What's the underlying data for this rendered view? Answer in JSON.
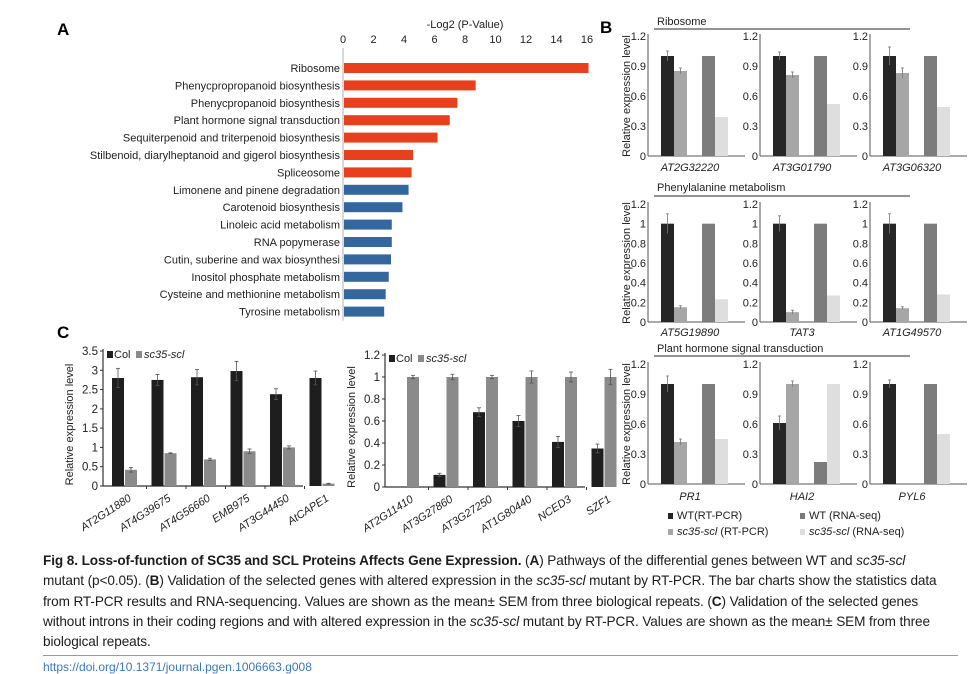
{
  "figure": {
    "panel_labels": {
      "a": "A",
      "b": "B",
      "c": "C"
    }
  },
  "colors": {
    "enriched_red": "#e8401c",
    "enriched_blue": "#34679e",
    "wt_rtpcr": "#262626",
    "mut_rtpcr": "#a6a6a6",
    "wt_rnaseq": "#7c7c7c",
    "mut_rnaseq": "#dedede",
    "col": "#1e1e1e",
    "sc35": "#8a8a8a"
  },
  "chart_data": [
    {
      "id": "A",
      "type": "bar",
      "orientation": "horizontal",
      "title": "",
      "xlabel": "-Log2 (P-Value)",
      "ylabel": "",
      "xlim": [
        0,
        16
      ],
      "xticks": [
        0,
        2,
        4,
        6,
        8,
        10,
        12,
        14,
        16
      ],
      "axis_position": "top",
      "categories": [
        "Ribosome",
        "Phenycpropropanoid biosynthesis",
        "Phenycpropanoid biosynthesis",
        "Plant hormone signal transduction",
        "Sequiterpenoid and triterpenoid biosynthesis",
        "Stilbenoid, diarylheptanoid and gigerol biosynthesis",
        "Spliceosome",
        "Limonene and pinene degradation",
        "Carotenoid biosynthesis",
        "Linoleic acid metabolism",
        "RNA popymerase",
        "Cutin, suberine and wax biosynthesi",
        "Inositol phosphate metabolism",
        "Cysteine and methionine metabolism",
        "Tyrosine metabolism"
      ],
      "values": [
        16.1,
        8.7,
        7.5,
        7.0,
        6.2,
        4.6,
        4.5,
        4.3,
        3.9,
        3.2,
        3.2,
        3.15,
        3.0,
        2.8,
        2.7
      ],
      "bar_colors": [
        "red",
        "red",
        "red",
        "red",
        "red",
        "red",
        "red",
        "blue",
        "blue",
        "blue",
        "blue",
        "blue",
        "blue",
        "blue",
        "blue"
      ]
    },
    {
      "id": "B",
      "type": "bar",
      "ylabel": "Relative expression level",
      "legend": [
        {
          "key": "wt_rtpcr",
          "label": "WT(RT-PCR)",
          "italic_part": ""
        },
        {
          "key": "mut_rtpcr",
          "label": " (RT-PCR)",
          "italic_part": "sc35-scl"
        },
        {
          "key": "wt_rnaseq",
          "label": "WT (RNA-seq)",
          "italic_part": ""
        },
        {
          "key": "mut_rnaseq",
          "label": " (RNA-seq)",
          "italic_part": "sc35-scl"
        }
      ],
      "legend_placement": "bottom",
      "groups": [
        {
          "title": "Ribosome",
          "ylim": [
            0,
            1.2
          ],
          "yticks": [
            "0",
            "0.3",
            "0.6",
            "0.9",
            "1.2"
          ],
          "yvals": [
            0,
            0.3,
            0.6,
            0.9,
            1.2
          ],
          "genes": [
            {
              "name": "AT2G32220",
              "wt_rtpcr": 1.0,
              "wt_err": 0.05,
              "mut_rtpcr": 0.85,
              "mut_err": 0.03,
              "wt_rnaseq": 1.0,
              "mut_rnaseq": 0.39
            },
            {
              "name": "AT3G01790",
              "wt_rtpcr": 1.0,
              "wt_err": 0.04,
              "mut_rtpcr": 0.81,
              "mut_err": 0.03,
              "wt_rnaseq": 1.0,
              "mut_rnaseq": 0.52
            },
            {
              "name": "AT3G06320",
              "wt_rtpcr": 1.0,
              "wt_err": 0.09,
              "mut_rtpcr": 0.83,
              "mut_err": 0.05,
              "wt_rnaseq": 1.0,
              "mut_rnaseq": 0.49
            }
          ]
        },
        {
          "title": "Phenylalanine metabolism",
          "ylim": [
            0,
            1.2
          ],
          "yticks": [
            "0",
            "0.2",
            "0.4",
            "0.6",
            "0.8",
            "1",
            "1.2"
          ],
          "yvals": [
            0,
            0.2,
            0.4,
            0.6,
            0.8,
            1.0,
            1.2
          ],
          "genes": [
            {
              "name": "AT5G19890",
              "wt_rtpcr": 1.0,
              "wt_err": 0.1,
              "mut_rtpcr": 0.15,
              "mut_err": 0.015,
              "wt_rnaseq": 1.0,
              "mut_rnaseq": 0.23
            },
            {
              "name": "TAT3",
              "wt_rtpcr": 1.0,
              "wt_err": 0.08,
              "mut_rtpcr": 0.1,
              "mut_err": 0.02,
              "wt_rnaseq": 1.0,
              "mut_rnaseq": 0.27
            },
            {
              "name": "AT1G49570",
              "wt_rtpcr": 1.0,
              "wt_err": 0.1,
              "mut_rtpcr": 0.14,
              "mut_err": 0.015,
              "wt_rnaseq": 1.0,
              "mut_rnaseq": 0.28
            }
          ]
        },
        {
          "title": "Plant hormone signal transduction",
          "ylim": [
            0,
            1.2
          ],
          "yticks": [
            "0",
            "0.3",
            "0.6",
            "0.9",
            "1.2"
          ],
          "yvals": [
            0,
            0.3,
            0.6,
            0.9,
            1.2
          ],
          "genes": [
            {
              "name": "PR1",
              "wt_rtpcr": 1.0,
              "wt_err": 0.08,
              "mut_rtpcr": 0.42,
              "mut_err": 0.03,
              "wt_rnaseq": 1.0,
              "mut_rnaseq": 0.45
            },
            {
              "name": "HAI2",
              "wt_rtpcr": 0.61,
              "wt_err": 0.07,
              "mut_rtpcr": 1.0,
              "mut_err": 0.03,
              "wt_rnaseq": 0.22,
              "mut_rnaseq": 1.0
            },
            {
              "name": "PYL6",
              "wt_rtpcr": 1.0,
              "wt_err": 0.04,
              "mut_rtpcr": 0.0,
              "mut_err": 0.0,
              "wt_rnaseq": 1.0,
              "mut_rnaseq": 0.5
            }
          ]
        }
      ]
    },
    {
      "id": "C-left",
      "type": "bar",
      "ylabel": "Relative expression level",
      "ylim": [
        0,
        3.5
      ],
      "yticks": [
        "0",
        "0.5",
        "1",
        "1.5",
        "2",
        "2.5",
        "3",
        "3.5"
      ],
      "yvals": [
        0,
        0.5,
        1,
        1.5,
        2,
        2.5,
        3,
        3.5
      ],
      "legend": [
        {
          "key": "col",
          "label": "Col"
        },
        {
          "key": "sc35",
          "label": "sc35-scl",
          "italic": true
        }
      ],
      "legend_placement": "top-left",
      "categories": [
        "AT2G11880",
        "AT4G39675",
        "AT4G56660",
        "EMB975",
        "AT3G44450",
        "AtCAPE1"
      ],
      "series": [
        {
          "name": "Col",
          "values": [
            2.8,
            2.75,
            2.82,
            2.98,
            2.38,
            2.8
          ],
          "errors": [
            0.25,
            0.14,
            0.2,
            0.25,
            0.14,
            0.18
          ]
        },
        {
          "name": "sc35-scl",
          "values": [
            0.42,
            0.85,
            0.69,
            0.9,
            1.0,
            0.06
          ],
          "errors": [
            0.06,
            0.01,
            0.03,
            0.06,
            0.04,
            0.01
          ]
        }
      ]
    },
    {
      "id": "C-right",
      "type": "bar",
      "ylabel": "Relative expression level",
      "ylim": [
        0,
        1.2
      ],
      "yticks": [
        "0",
        "0.2",
        "0.4",
        "0.6",
        "0.8",
        "1",
        "1.2"
      ],
      "yvals": [
        0,
        0.2,
        0.4,
        0.6,
        0.8,
        1.0,
        1.2
      ],
      "legend": [
        {
          "key": "col",
          "label": "Col"
        },
        {
          "key": "sc35",
          "label": "sc35-scl",
          "italic": true
        }
      ],
      "legend_placement": "top-left",
      "categories": [
        "AT2G11410",
        "AT3G27860",
        "AT3G27250",
        "AT1G80440",
        "NCED3",
        "SZF1"
      ],
      "series": [
        {
          "name": "Col",
          "values": [
            0.0,
            0.11,
            0.68,
            0.6,
            0.41,
            0.35
          ],
          "errors": [
            0.0,
            0.015,
            0.04,
            0.05,
            0.05,
            0.04
          ]
        },
        {
          "name": "sc35-scl",
          "values": [
            1.0,
            1.0,
            1.0,
            1.0,
            1.0,
            1.0
          ],
          "errors": [
            0.015,
            0.025,
            0.015,
            0.055,
            0.045,
            0.07
          ]
        }
      ]
    }
  ],
  "caption": {
    "fig_label": "Fig 8. Loss-of-function of SC35 and SCL Proteins Affects Gene Expression.",
    "p1": " (",
    "A": "A",
    "a_text": ") Pathways of the differential genes between WT and ",
    "mutant_italic": "sc35-scl",
    "a_text2": " mutant (p<0.05). (",
    "B": "B",
    "b_text": ") Validation of the selected genes with altered expression in the ",
    "b_text2": " mutant by RT-PCR. The bar charts show the statistics data from RT-PCR results and RNA-sequencing. Values are shown as the mean± SEM from three biological repeats. (",
    "C": "C",
    "c_text": ") Validation of the selected genes without introns in their coding regions and with altered expression in the ",
    "c_text2": " mutant by RT-PCR. Values are shown as the mean± SEM from three biological repeats."
  },
  "doi": "https://doi.org/10.1371/journal.pgen.1006663.g008"
}
